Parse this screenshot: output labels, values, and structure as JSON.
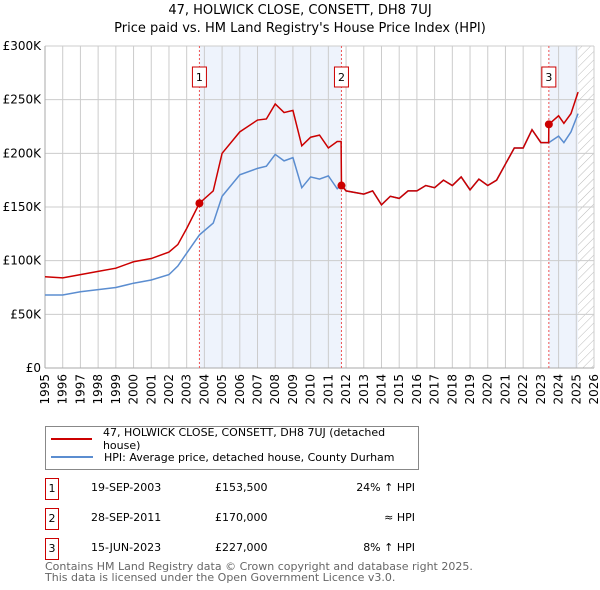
{
  "chart_data": {
    "type": "line",
    "title": "47, HOLWICK CLOSE, CONSETT, DH8 7UJ",
    "subtitle": "Price paid vs. HM Land Registry's House Price Index (HPI)",
    "xlim": [
      1995,
      2026
    ],
    "ylim": [
      0,
      300000
    ],
    "x_ticks": [
      "1995",
      "1996",
      "1997",
      "1998",
      "1999",
      "2000",
      "2001",
      "2002",
      "2003",
      "2004",
      "2005",
      "2006",
      "2007",
      "2008",
      "2009",
      "2010",
      "2011",
      "2012",
      "2013",
      "2014",
      "2015",
      "2016",
      "2017",
      "2018",
      "2019",
      "2020",
      "2021",
      "2022",
      "2023",
      "2024",
      "2025",
      "2026"
    ],
    "y_ticks": [
      {
        "v": 0,
        "label": "£0"
      },
      {
        "v": 50000,
        "label": "£50K"
      },
      {
        "v": 100000,
        "label": "£100K"
      },
      {
        "v": 150000,
        "label": "£150K"
      },
      {
        "v": 200000,
        "label": "£200K"
      },
      {
        "v": 250000,
        "label": "£250K"
      },
      {
        "v": 300000,
        "label": "£300K"
      }
    ],
    "grid": true,
    "series": [
      {
        "name": "47, HOLWICK CLOSE, CONSETT, DH8 7UJ (detached house)",
        "color": "#cc0000",
        "x": [
          1995,
          1996,
          1997,
          1998,
          1999,
          2000,
          2001,
          2002,
          2002.5,
          2003,
          2003.72,
          2004.5,
          2005,
          2006,
          2007,
          2007.5,
          2008,
          2008.5,
          2009,
          2009.5,
          2010,
          2010.5,
          2011,
          2011.5,
          2011.72,
          2011.74,
          2012,
          2013,
          2013.5,
          2014,
          2014.5,
          2015,
          2015.5,
          2016,
          2016.5,
          2017,
          2017.5,
          2018,
          2018.5,
          2019,
          2019.5,
          2020,
          2020.5,
          2021,
          2021.5,
          2022,
          2022.5,
          2023,
          2023.44,
          2023.45,
          2024,
          2024.3,
          2024.7,
          2025.1
        ],
        "y": [
          85000,
          84000,
          87000,
          90000,
          93000,
          99000,
          102000,
          108000,
          115000,
          130000,
          153500,
          165000,
          200000,
          220000,
          231000,
          232000,
          246000,
          238000,
          240000,
          207000,
          215000,
          217000,
          205000,
          211000,
          211000,
          170000,
          165000,
          162000,
          165000,
          152000,
          160000,
          158000,
          165000,
          165000,
          170000,
          168000,
          175000,
          170000,
          178000,
          166000,
          176000,
          170000,
          175000,
          190000,
          205000,
          205000,
          222000,
          210000,
          210000,
          227000,
          235000,
          228000,
          237000,
          257000
        ]
      },
      {
        "name": "HPI: Average price, detached house, County Durham",
        "color": "#5b8dd0",
        "x": [
          1995,
          1996,
          1997,
          1998,
          1999,
          2000,
          2001,
          2002,
          2002.5,
          2003,
          2003.72,
          2004.5,
          2005,
          2006,
          2007,
          2007.5,
          2008,
          2008.5,
          2009,
          2009.5,
          2010,
          2010.5,
          2011,
          2011.5,
          2011.74,
          2012,
          2013,
          2013.5,
          2014,
          2014.5,
          2015,
          2015.5,
          2016,
          2016.5,
          2017,
          2017.5,
          2018,
          2018.5,
          2019,
          2019.5,
          2020,
          2020.5,
          2021,
          2021.5,
          2022,
          2022.5,
          2023,
          2023.45,
          2024,
          2024.3,
          2024.7,
          2025.1
        ],
        "y": [
          68000,
          68000,
          71000,
          73000,
          75000,
          79000,
          82000,
          87000,
          95000,
          107000,
          124000,
          135000,
          160000,
          180000,
          186000,
          188000,
          199000,
          193000,
          196000,
          168000,
          178000,
          176000,
          179000,
          167000,
          171000,
          165000,
          162000,
          165000,
          152000,
          160000,
          158000,
          165000,
          165000,
          170000,
          168000,
          175000,
          170000,
          178000,
          166000,
          176000,
          170000,
          175000,
          190000,
          205000,
          205000,
          222000,
          210000,
          210000,
          216000,
          210000,
          220000,
          237000
        ]
      }
    ],
    "sales": [
      {
        "n": "1",
        "x": 2003.72,
        "y": 153500,
        "date": "19-SEP-2003",
        "price": "£153,500",
        "hpi": "24% ↑ HPI"
      },
      {
        "n": "2",
        "x": 2011.74,
        "y": 170000,
        "date": "28-SEP-2011",
        "price": "£170,000",
        "hpi": "≈ HPI"
      },
      {
        "n": "3",
        "x": 2023.45,
        "y": 227000,
        "date": "15-JUN-2023",
        "price": "£227,000",
        "hpi": "8% ↑ HPI"
      }
    ],
    "shaded_ranges": [
      [
        2003.72,
        2011.74
      ],
      [
        2023.45,
        2025.1
      ]
    ],
    "hatched_from": 2025.1,
    "legend": "below"
  },
  "footer": {
    "line1": "Contains HM Land Registry data © Crown copyright and database right 2025.",
    "line2": "This data is licensed under the Open Government Licence v3.0."
  }
}
